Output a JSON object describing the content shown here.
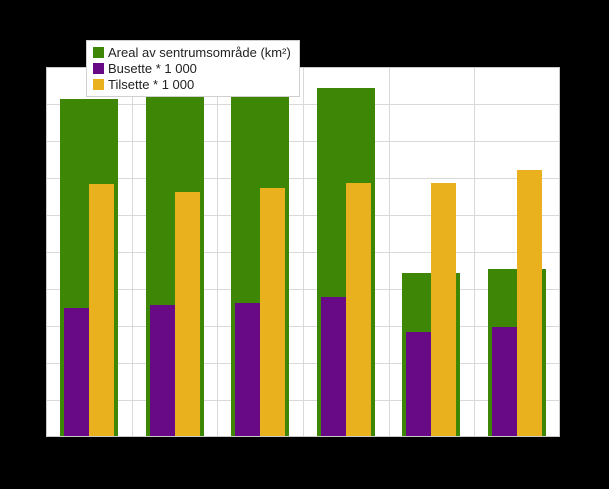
{
  "window": {
    "background_color": "#000000",
    "title": ""
  },
  "plot": {
    "background_color": "#ffffff",
    "border_color": "#c9c9c9",
    "gridline_color": "#d9d9d9"
  },
  "chart_data": {
    "type": "bar",
    "subtype": "grouped-overlapping (green bar behind purple and yellow bars)",
    "title": "",
    "xlabel": "",
    "ylabel": "",
    "categories": [
      "",
      "",
      "",
      "",
      "",
      ""
    ],
    "num_groups": 6,
    "axis_tick_labels_visible": false,
    "value_scale_note": "no numeric axis labels visible; values estimated in gridline units",
    "ylim": [
      0,
      10
    ],
    "grid": {
      "horizontal": true,
      "vertical": true
    },
    "legend_position": "top-left",
    "series": [
      {
        "key": "areal",
        "name": "Areal av sentrumsområde (km²)",
        "color": "#3E8706",
        "values": [
          9.1,
          9.15,
          9.15,
          9.4,
          4.4,
          4.5
        ]
      },
      {
        "key": "busette",
        "name": "Busette * 1 000",
        "color": "#680A86",
        "values": [
          3.45,
          3.55,
          3.6,
          3.75,
          2.8,
          2.95
        ]
      },
      {
        "key": "tilsette",
        "name": "Tilsette * 1 000",
        "color": "#E9B11E",
        "values": [
          6.8,
          6.6,
          6.7,
          6.85,
          6.85,
          7.2
        ]
      }
    ]
  }
}
